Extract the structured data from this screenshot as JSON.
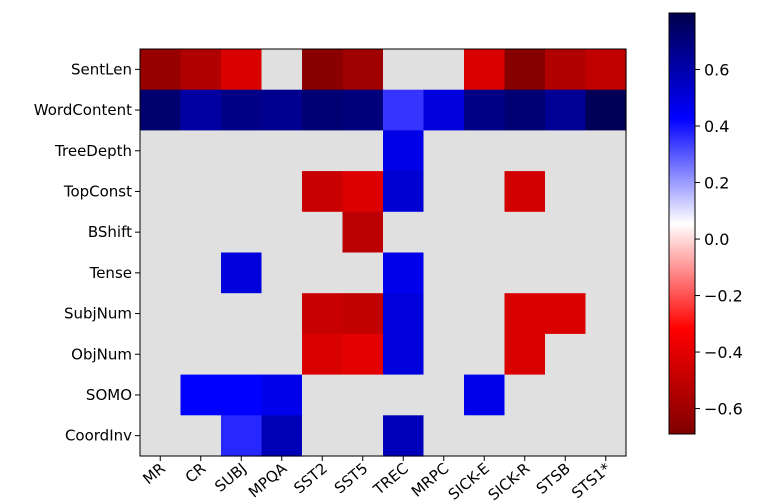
{
  "chart_data": {
    "type": "heatmap",
    "rows": [
      "SentLen",
      "WordContent",
      "TreeDepth",
      "TopConst",
      "BShift",
      "Tense",
      "SubjNum",
      "ObjNum",
      "SOMO",
      "CoordInv"
    ],
    "columns": [
      "MR",
      "CR",
      "SUBJ",
      "MPQA",
      "SST2",
      "SST5",
      "TREC",
      "MRPC",
      "SICK-E",
      "SICK-R",
      "STSB",
      "STS1*"
    ],
    "values": [
      [
        -0.62,
        -0.55,
        -0.43,
        null,
        -0.66,
        -0.6,
        null,
        null,
        -0.43,
        -0.67,
        -0.55,
        -0.5
      ],
      [
        0.73,
        0.62,
        0.68,
        0.66,
        0.72,
        0.7,
        0.35,
        0.5,
        0.68,
        0.72,
        0.65,
        0.78
      ],
      [
        null,
        null,
        null,
        null,
        null,
        null,
        0.48,
        null,
        null,
        null,
        null,
        null
      ],
      [
        null,
        null,
        null,
        null,
        -0.48,
        -0.42,
        0.52,
        null,
        null,
        -0.45,
        null,
        null
      ],
      [
        null,
        null,
        null,
        null,
        null,
        -0.52,
        null,
        null,
        null,
        null,
        null,
        null
      ],
      [
        null,
        null,
        0.5,
        null,
        null,
        null,
        0.47,
        null,
        null,
        null,
        null,
        null
      ],
      [
        null,
        null,
        null,
        null,
        -0.48,
        -0.5,
        0.5,
        null,
        null,
        -0.43,
        -0.43,
        null
      ],
      [
        null,
        null,
        null,
        null,
        -0.43,
        -0.4,
        0.5,
        null,
        null,
        -0.43,
        null,
        null
      ],
      [
        null,
        0.43,
        0.43,
        0.47,
        null,
        null,
        null,
        null,
        0.47,
        null,
        null,
        null
      ],
      [
        null,
        null,
        0.37,
        0.58,
        null,
        null,
        0.57,
        null,
        null,
        null,
        null,
        null
      ]
    ],
    "missing_color": "#e0e0e0",
    "colormap": "seismic_r",
    "vmin": -0.69,
    "vmax": 0.8,
    "colorbar_ticks": [
      {
        "v": 0.6,
        "label": "0.6"
      },
      {
        "v": 0.4,
        "label": "0.4"
      },
      {
        "v": 0.2,
        "label": "0.2"
      },
      {
        "v": 0.0,
        "label": "0.0"
      },
      {
        "v": -0.2,
        "label": "−0.2"
      },
      {
        "v": -0.4,
        "label": "−0.4"
      },
      {
        "v": -0.6,
        "label": "−0.6"
      }
    ]
  }
}
